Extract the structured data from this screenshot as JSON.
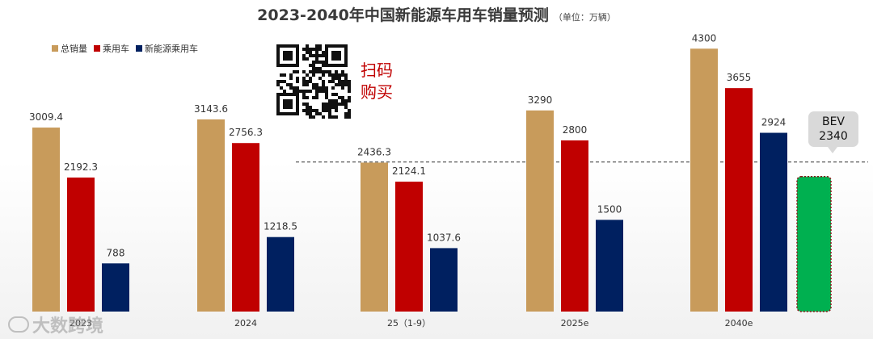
{
  "title": "2023-2040年中国新能源车用车销量预测",
  "unit_note": "（单位：万辆）",
  "qr_caption_line1": "扫码",
  "qr_caption_line2": "购买",
  "watermark_text": "大数跨境",
  "colors": {
    "total": "#c89b5b",
    "passenger": "#c00000",
    "nev": "#002060",
    "bev": "#00b050"
  },
  "chart_data": {
    "type": "bar",
    "title": "2023-2040年中国新能源车用车销量预测",
    "categories": [
      "2023",
      "2024",
      "25（1-9）",
      "2025e",
      "2040e"
    ],
    "series": [
      {
        "name": "总销量",
        "values": [
          3009.4,
          3143.6,
          2436.3,
          3290,
          4300
        ],
        "labels": [
          "3009.4",
          "3143.6",
          "2436.3",
          "3290",
          "4300"
        ]
      },
      {
        "name": "乘用车",
        "values": [
          2192.3,
          2756.3,
          2124.1,
          2800,
          3655
        ],
        "labels": [
          "2192.3",
          "2756.3",
          "2124.1",
          "2800",
          "3655"
        ]
      },
      {
        "name": "新能源乘用车",
        "values": [
          788,
          1218.5,
          1037.6,
          1500,
          2924
        ],
        "labels": [
          "788",
          "1218.5",
          "1037.6",
          "1500",
          "2924"
        ]
      }
    ],
    "extra_bar": {
      "category": "2040e",
      "name": "BEV",
      "value": 2340,
      "label_line1": "BEV",
      "label_line2": "2340"
    },
    "reference_line": {
      "style": "dashed",
      "value": 2340
    },
    "ylim": [
      0,
      4700
    ],
    "legend_position": "top-left",
    "grid": false
  }
}
